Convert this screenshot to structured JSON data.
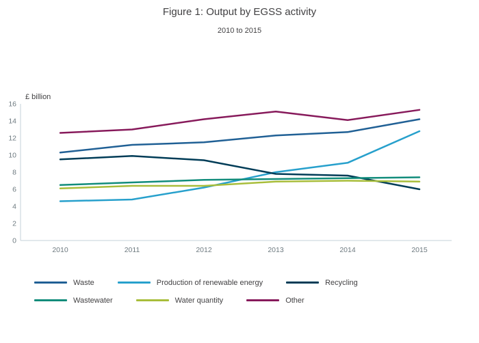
{
  "header": {
    "title": "Figure 1: Output by EGSS activity",
    "subtitle": "2010 to 2015"
  },
  "chart_data": {
    "type": "line",
    "title": "Figure 1: Output by EGSS activity",
    "subtitle": "2010 to 2015",
    "xlabel": "",
    "ylabel": "£ billion",
    "x": [
      "2010",
      "2011",
      "2012",
      "2013",
      "2014",
      "2015"
    ],
    "ylim": [
      0,
      16
    ],
    "yticks": [
      0,
      2,
      4,
      6,
      8,
      10,
      12,
      14,
      16
    ],
    "grid": false,
    "legend_position": "bottom",
    "series": [
      {
        "name": "Waste",
        "color": "#206095",
        "values": [
          10.3,
          11.2,
          11.5,
          12.3,
          12.7,
          14.2
        ]
      },
      {
        "name": "Production of renewable energy",
        "color": "#27A0CC",
        "values": [
          4.6,
          4.8,
          6.2,
          8.0,
          9.1,
          12.8
        ]
      },
      {
        "name": "Recycling",
        "color": "#003C57",
        "values": [
          9.5,
          9.9,
          9.4,
          7.8,
          7.6,
          6.0
        ]
      },
      {
        "name": "Wastewater",
        "color": "#118C7B",
        "values": [
          6.5,
          6.8,
          7.1,
          7.2,
          7.3,
          7.4
        ]
      },
      {
        "name": "Water quantity",
        "color": "#A8BD3A",
        "values": [
          6.1,
          6.4,
          6.4,
          6.9,
          7.0,
          6.9
        ]
      },
      {
        "name": "Other",
        "color": "#871A5B",
        "values": [
          12.6,
          13.0,
          14.2,
          15.1,
          14.1,
          15.3
        ]
      }
    ],
    "axis_color": "#c6d1d9"
  }
}
